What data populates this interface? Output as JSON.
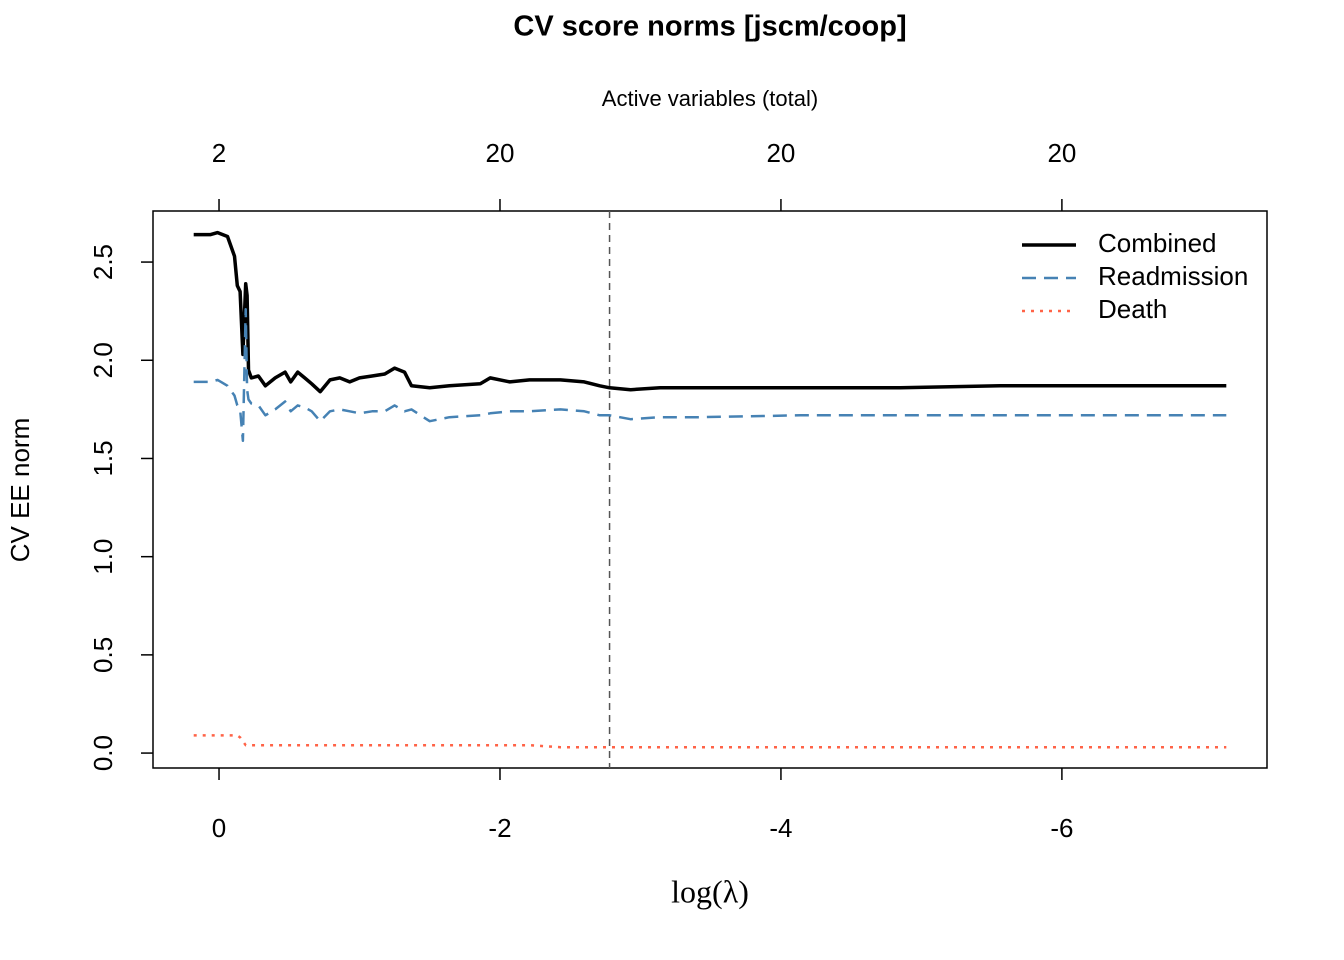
{
  "chart_data": {
    "type": "line",
    "title": "CV score norms  [jscm/coop]",
    "x2_label": "Active variables (total)",
    "y_label": "CV EE norm",
    "x_label": "log(λ)",
    "xlim": [
      0.47,
      -7.46
    ],
    "ylim": [
      -0.076,
      2.76
    ],
    "xticks": [
      0,
      -2,
      -4,
      -6
    ],
    "x2ticks": [
      {
        "value": 0,
        "label": "2"
      },
      {
        "value": -2,
        "label": "20"
      },
      {
        "value": -4,
        "label": "20"
      },
      {
        "value": -6,
        "label": "20"
      }
    ],
    "yticks": [
      {
        "value": 0,
        "label": "0.0"
      },
      {
        "value": 0.5,
        "label": "0.5"
      },
      {
        "value": 1,
        "label": "1.0"
      },
      {
        "value": 1.5,
        "label": "1.5"
      },
      {
        "value": 2,
        "label": "2.0"
      },
      {
        "value": 2.5,
        "label": "2.5"
      }
    ],
    "vline": -2.78,
    "legend": "top-right",
    "x": [
      0.18,
      0.06,
      0.01,
      -0.06,
      -0.11,
      -0.13,
      -0.15,
      -0.17,
      -0.19,
      -0.2,
      -0.21,
      -0.23,
      -0.28,
      -0.33,
      -0.4,
      -0.47,
      -0.51,
      -0.56,
      -0.61,
      -0.66,
      -0.72,
      -0.79,
      -0.86,
      -0.93,
      -1.0,
      -1.09,
      -1.18,
      -1.25,
      -1.32,
      -1.37,
      -1.5,
      -1.64,
      -1.86,
      -1.93,
      -2.07,
      -2.21,
      -2.43,
      -2.6,
      -2.71,
      -2.78,
      -2.93,
      -3.14,
      -3.42,
      -4.14,
      -4.85,
      -5.56,
      -6.27,
      -7.17
    ],
    "series": [
      {
        "name": "Combined",
        "color": "#000000",
        "dash": "solid",
        "values": [
          2.64,
          2.64,
          2.65,
          2.63,
          2.53,
          2.38,
          2.35,
          2.03,
          2.39,
          2.33,
          1.95,
          1.91,
          1.92,
          1.87,
          1.91,
          1.94,
          1.89,
          1.94,
          1.91,
          1.88,
          1.84,
          1.9,
          1.91,
          1.89,
          1.91,
          1.92,
          1.93,
          1.96,
          1.94,
          1.87,
          1.86,
          1.87,
          1.88,
          1.91,
          1.89,
          1.9,
          1.9,
          1.89,
          1.87,
          1.86,
          1.85,
          1.86,
          1.86,
          1.86,
          1.86,
          1.87,
          1.87,
          1.87
        ]
      },
      {
        "name": "Readmission",
        "color": "#4682b4",
        "dash": "dashed",
        "values": [
          1.89,
          1.89,
          1.9,
          1.87,
          1.82,
          1.77,
          1.75,
          1.59,
          2.26,
          1.85,
          1.8,
          1.78,
          1.77,
          1.72,
          1.75,
          1.79,
          1.74,
          1.77,
          1.76,
          1.74,
          1.69,
          1.74,
          1.75,
          1.74,
          1.73,
          1.74,
          1.74,
          1.77,
          1.74,
          1.75,
          1.69,
          1.71,
          1.72,
          1.73,
          1.74,
          1.74,
          1.75,
          1.74,
          1.72,
          1.72,
          1.7,
          1.71,
          1.71,
          1.72,
          1.72,
          1.72,
          1.72,
          1.72
        ]
      },
      {
        "name": "Death",
        "color": "#ff6347",
        "dash": "dotted",
        "values": [
          0.09,
          0.09,
          0.09,
          0.09,
          0.09,
          0.09,
          0.08,
          0.06,
          0.04,
          0.04,
          0.04,
          0.04,
          0.04,
          0.04,
          0.04,
          0.04,
          0.04,
          0.04,
          0.04,
          0.04,
          0.04,
          0.04,
          0.04,
          0.04,
          0.04,
          0.04,
          0.04,
          0.04,
          0.04,
          0.04,
          0.04,
          0.04,
          0.04,
          0.04,
          0.04,
          0.04,
          0.03,
          0.03,
          0.03,
          0.03,
          0.03,
          0.03,
          0.03,
          0.03,
          0.03,
          0.03,
          0.03,
          0.03
        ]
      }
    ]
  }
}
